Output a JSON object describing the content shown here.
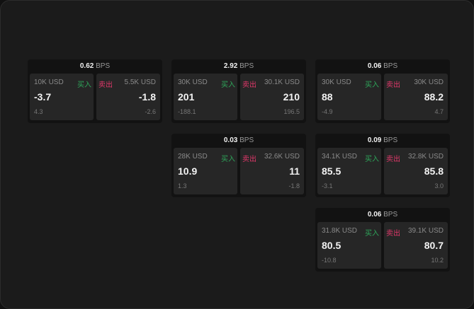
{
  "buy_label": "买入",
  "sell_label": "卖出",
  "unit": "BPS",
  "colors": {
    "buy": "#2ea65a",
    "sell": "#e0386a"
  },
  "cards": [
    {
      "col": 0,
      "row": 0,
      "spread": "0.62",
      "buy": {
        "size": "10K USD",
        "price": "-3.7",
        "change": "4.3"
      },
      "sell": {
        "size": "5.5K USD",
        "price": "-1.8",
        "change": "-2.6"
      }
    },
    {
      "col": 1,
      "row": 0,
      "spread": "2.92",
      "buy": {
        "size": "30K USD",
        "price": "201",
        "change": "-188.1"
      },
      "sell": {
        "size": "30.1K USD",
        "price": "210",
        "change": "196.5"
      }
    },
    {
      "col": 2,
      "row": 0,
      "spread": "0.06",
      "buy": {
        "size": "30K USD",
        "price": "88",
        "change": "-4.9"
      },
      "sell": {
        "size": "30K USD",
        "price": "88.2",
        "change": "4.7"
      }
    },
    {
      "col": 1,
      "row": 1,
      "spread": "0.03",
      "buy": {
        "size": "28K USD",
        "price": "10.9",
        "change": "1.3"
      },
      "sell": {
        "size": "32.6K USD",
        "price": "11",
        "change": "-1.8"
      }
    },
    {
      "col": 2,
      "row": 1,
      "spread": "0.09",
      "buy": {
        "size": "34.1K USD",
        "price": "85.5",
        "change": "-3.1"
      },
      "sell": {
        "size": "32.8K USD",
        "price": "85.8",
        "change": "3.0"
      }
    },
    {
      "col": 2,
      "row": 2,
      "spread": "0.06",
      "buy": {
        "size": "31.8K USD",
        "price": "80.5",
        "change": "-10.8"
      },
      "sell": {
        "size": "39.1K USD",
        "price": "80.7",
        "change": "10.2"
      }
    }
  ]
}
